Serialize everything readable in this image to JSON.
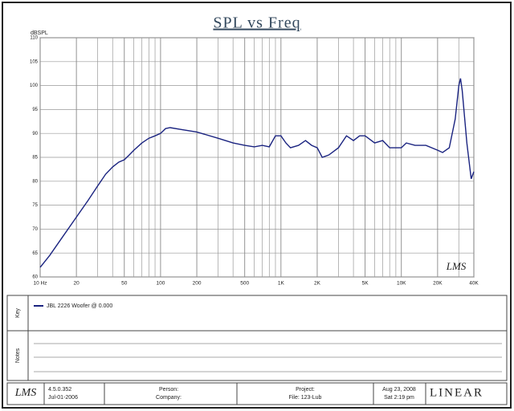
{
  "chart_data": {
    "type": "line",
    "title": "SPL vs Freq",
    "ylabel": "dBSPL",
    "xscale": "log",
    "xlim": [
      10,
      40000
    ],
    "ylim": [
      60,
      110
    ],
    "xticks": [
      {
        "value": 10,
        "label": "10 Hz"
      },
      20,
      50,
      100,
      200,
      500,
      {
        "value": 1000,
        "label": "1K"
      },
      {
        "value": 2000,
        "label": "2K"
      },
      {
        "value": 5000,
        "label": "5K"
      },
      {
        "value": 10000,
        "label": "10K"
      },
      {
        "value": 20000,
        "label": "20K"
      },
      {
        "value": 40000,
        "label": "40K"
      }
    ],
    "minor_xticks": [
      30,
      40,
      60,
      70,
      80,
      90,
      300,
      400,
      600,
      700,
      800,
      900,
      3000,
      4000,
      6000,
      7000,
      8000,
      9000,
      30000
    ],
    "yticks": [
      60,
      65,
      70,
      75,
      80,
      85,
      90,
      95,
      100,
      105,
      110
    ],
    "grid": true,
    "watermark": "LMS",
    "series": [
      {
        "name": "JBL 2226 Woofer @ 0.000",
        "color": "#1a2380",
        "x": [
          10,
          12,
          15,
          20,
          25,
          30,
          35,
          40,
          45,
          50,
          55,
          60,
          70,
          80,
          90,
          100,
          110,
          120,
          150,
          200,
          300,
          400,
          500,
          600,
          700,
          800,
          900,
          1000,
          1100,
          1200,
          1400,
          1600,
          1800,
          2000,
          2200,
          2500,
          3000,
          3500,
          4000,
          4500,
          5000,
          6000,
          7000,
          8000,
          9000,
          10000,
          11000,
          13000,
          16000,
          20000,
          22000,
          25000,
          28000,
          30000,
          31000,
          32000,
          35000,
          38000,
          40000
        ],
        "values": [
          62,
          64.5,
          68,
          72.5,
          76,
          79,
          81.5,
          83,
          84,
          84.5,
          85.5,
          86.5,
          88,
          89,
          89.5,
          90,
          91,
          91.2,
          90.8,
          90.3,
          89,
          88,
          87.5,
          87.2,
          87.5,
          87.2,
          89.5,
          89.5,
          88,
          87,
          87.5,
          88.5,
          87.5,
          87,
          85,
          85.5,
          87,
          89.5,
          88.5,
          89.5,
          89.5,
          88,
          88.5,
          87,
          87,
          87,
          88,
          87.5,
          87.5,
          86.5,
          86,
          87,
          93,
          100,
          101.5,
          99,
          88,
          80.5,
          82
        ]
      }
    ]
  },
  "panel": {
    "key_label": "Key",
    "notes_label": "Notes",
    "logo": "LMS",
    "version": "4.5.0.352",
    "version_date": "Jul-01-2006",
    "person": "Person:",
    "company": "Company:",
    "project": "Project:",
    "file": "File: 123-Lub",
    "date": "Aug 23, 2008",
    "time": "Sat 2:19 pm",
    "brand": "LINEAR"
  }
}
